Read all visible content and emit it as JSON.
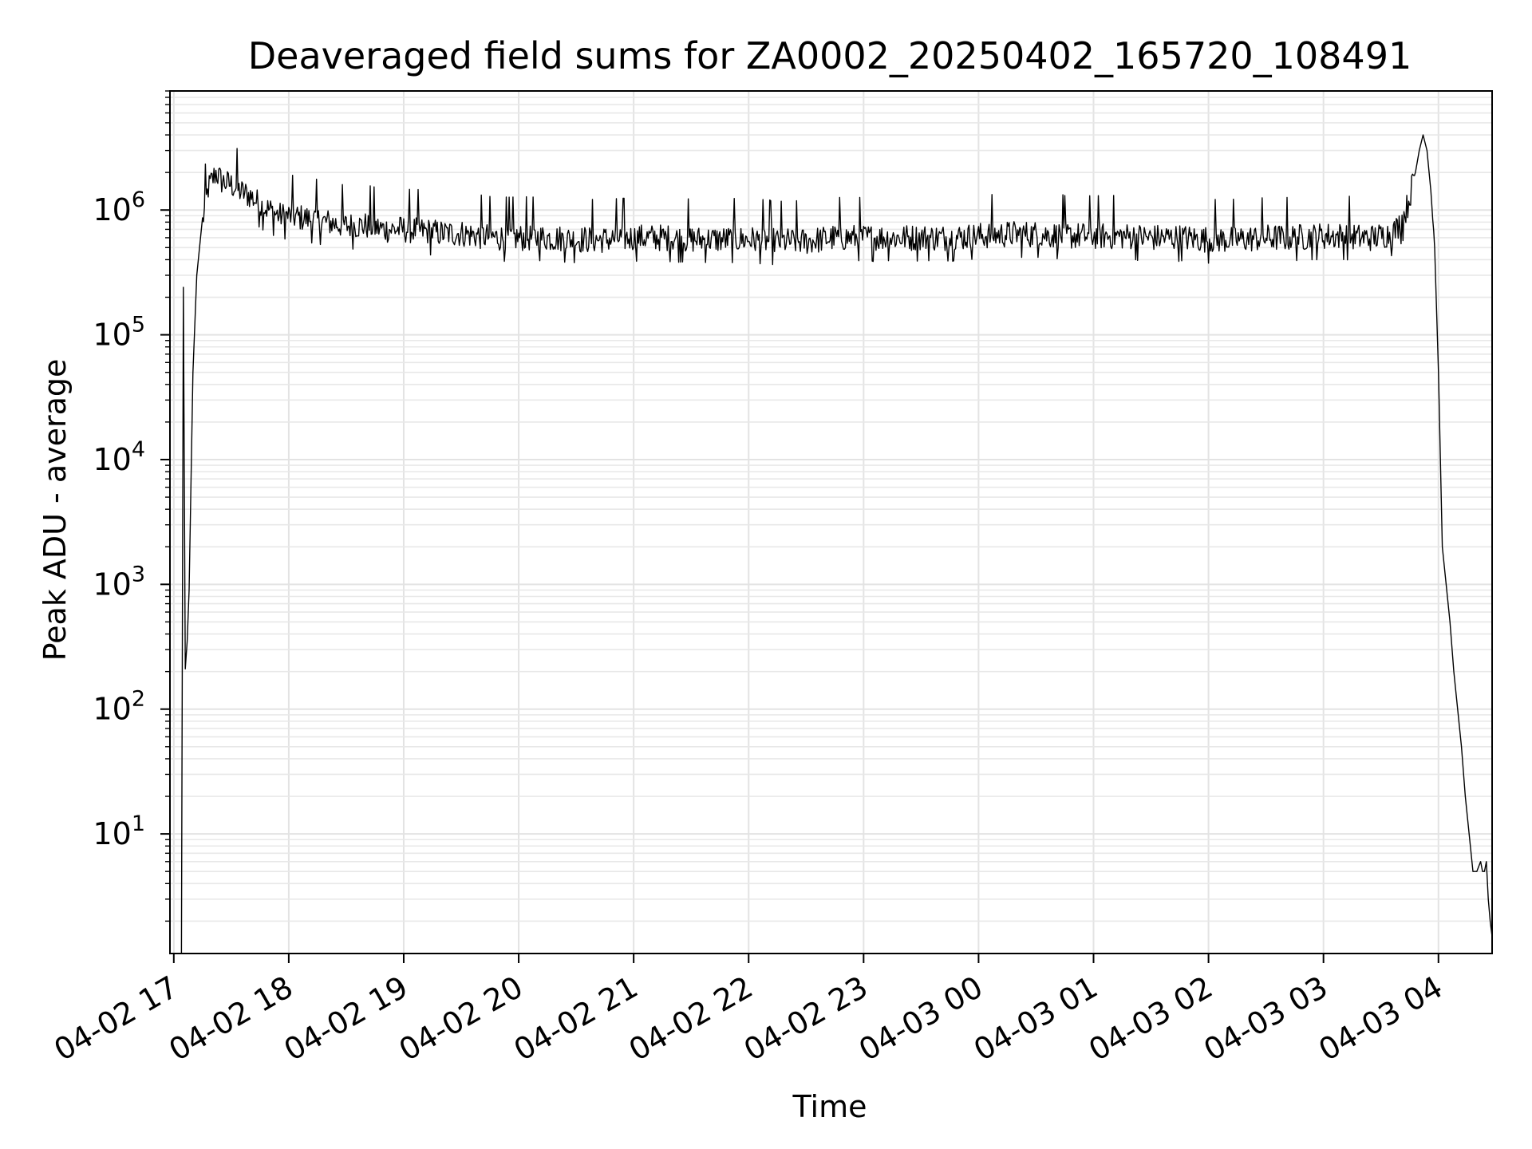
{
  "chart_data": {
    "type": "line",
    "title": "Deaveraged field sums for ZA0002_20250402_165720_108491",
    "xlabel": "Time",
    "ylabel": "Peak ADU - average",
    "yscale": "log",
    "ylim": [
      1.1,
      9000000
    ],
    "xlim": [
      "2025-04-02T16:58",
      "2025-04-03T04:28"
    ],
    "grid": true,
    "x_ticks": [
      "04-02 17",
      "04-02 18",
      "04-02 19",
      "04-02 20",
      "04-02 21",
      "04-02 22",
      "04-02 23",
      "04-03 00",
      "04-03 01",
      "04-03 02",
      "04-03 03",
      "04-03 04"
    ],
    "y_ticks": [
      {
        "base": "10",
        "exp": "1",
        "value": 10
      },
      {
        "base": "10",
        "exp": "2",
        "value": 100
      },
      {
        "base": "10",
        "exp": "3",
        "value": 1000
      },
      {
        "base": "10",
        "exp": "4",
        "value": 10000
      },
      {
        "base": "10",
        "exp": "5",
        "value": 100000
      },
      {
        "base": "10",
        "exp": "6",
        "value": 1000000
      }
    ],
    "series": [
      {
        "color": "#000000",
        "x": [
          "2025-04-02T17:04",
          "2025-04-02T17:05",
          "2025-04-02T17:06",
          "2025-04-02T17:07",
          "2025-04-02T17:08",
          "2025-04-02T17:10",
          "2025-04-02T17:12",
          "2025-04-02T17:15",
          "2025-04-02T17:18",
          "2025-04-02T17:22",
          "2025-04-02T17:25",
          "2025-04-02T17:30",
          "2025-04-02T17:35",
          "2025-04-02T17:40",
          "2025-04-02T17:45",
          "2025-04-02T17:50",
          "2025-04-02T17:55",
          "2025-04-02T18:00",
          "2025-04-02T18:10",
          "2025-04-02T18:20",
          "2025-04-02T18:30",
          "2025-04-02T18:40",
          "2025-04-02T18:50",
          "2025-04-02T19:00",
          "2025-04-02T19:10",
          "2025-04-02T19:20",
          "2025-04-02T19:30",
          "2025-04-02T19:40",
          "2025-04-02T19:50",
          "2025-04-02T20:00",
          "2025-04-02T20:15",
          "2025-04-02T20:30",
          "2025-04-02T20:45",
          "2025-04-02T21:00",
          "2025-04-02T21:15",
          "2025-04-02T21:30",
          "2025-04-02T21:45",
          "2025-04-02T22:00",
          "2025-04-02T22:15",
          "2025-04-02T22:30",
          "2025-04-02T22:45",
          "2025-04-02T23:00",
          "2025-04-02T23:15",
          "2025-04-02T23:30",
          "2025-04-02T23:45",
          "2025-04-03T00:00",
          "2025-04-03T00:15",
          "2025-04-03T00:30",
          "2025-04-03T00:45",
          "2025-04-03T01:00",
          "2025-04-03T01:15",
          "2025-04-03T01:30",
          "2025-04-03T01:45",
          "2025-04-03T02:00",
          "2025-04-03T02:15",
          "2025-04-03T02:30",
          "2025-04-03T02:45",
          "2025-04-03T03:00",
          "2025-04-03T03:10",
          "2025-04-03T03:20",
          "2025-04-03T03:25",
          "2025-04-03T03:30",
          "2025-04-03T03:35",
          "2025-04-03T03:38",
          "2025-04-03T03:40",
          "2025-04-03T03:42",
          "2025-04-03T03:44",
          "2025-04-03T03:46",
          "2025-04-03T03:48",
          "2025-04-03T03:50",
          "2025-04-03T03:52",
          "2025-04-03T03:54",
          "2025-04-03T03:56",
          "2025-04-03T03:58",
          "2025-04-03T04:00",
          "2025-04-03T04:02",
          "2025-04-03T04:04",
          "2025-04-03T04:06",
          "2025-04-03T04:08",
          "2025-04-03T04:10",
          "2025-04-03T04:12",
          "2025-04-03T04:14",
          "2025-04-03T04:16",
          "2025-04-03T04:18",
          "2025-04-03T04:20",
          "2025-04-03T04:22",
          "2025-04-03T04:23",
          "2025-04-03T04:24",
          "2025-04-03T04:25",
          "2025-04-03T04:26",
          "2025-04-03T04:27",
          "2025-04-03T04:28"
        ],
        "y": [
          1.1,
          240000,
          210,
          350,
          900,
          50000,
          300000,
          800000,
          1500000,
          2000000,
          1700000,
          1600000,
          1400000,
          1300000,
          1100000,
          1000000,
          900000,
          900000,
          850000,
          800000,
          750000,
          750000,
          700000,
          700000,
          680000,
          650000,
          650000,
          620000,
          600000,
          600000,
          600000,
          580000,
          580000,
          600000,
          600000,
          580000,
          580000,
          580000,
          560000,
          560000,
          600000,
          600000,
          600000,
          600000,
          600000,
          620000,
          640000,
          640000,
          620000,
          620000,
          620000,
          600000,
          600000,
          580000,
          580000,
          600000,
          600000,
          620000,
          620000,
          600000,
          600000,
          620000,
          650000,
          700000,
          800000,
          900000,
          1100000,
          1500000,
          2000000,
          3000000,
          4000000,
          3000000,
          1500000,
          500000,
          50000,
          2000,
          1000,
          500,
          200,
          100,
          50,
          20,
          10,
          5,
          5,
          6,
          5,
          5,
          6,
          3,
          2,
          1.5
        ]
      }
    ]
  }
}
